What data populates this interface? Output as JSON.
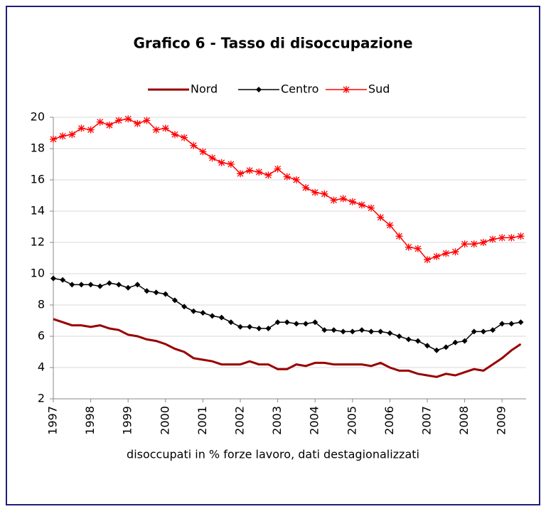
{
  "chart_data": {
    "type": "line",
    "title": "Grafico 6 - Tasso di disoccupazione",
    "x_label": "disoccupati in % forze lavoro, dati destagionalizzati",
    "categories": [
      "1997",
      null,
      null,
      null,
      "1998",
      null,
      null,
      null,
      "1999",
      null,
      null,
      null,
      "2000",
      null,
      null,
      null,
      "2001",
      null,
      null,
      null,
      "2002",
      null,
      null,
      null,
      "2003",
      null,
      null,
      null,
      "2004",
      null,
      null,
      null,
      "2005",
      null,
      null,
      null,
      "2006",
      null,
      null,
      null,
      "2007",
      null,
      null,
      null,
      "2008",
      null,
      null,
      null,
      "2009",
      null,
      null
    ],
    "series": [
      {
        "name": "Nord",
        "color": "#990000",
        "marker": "none",
        "values": [
          7.1,
          6.9,
          6.7,
          6.7,
          6.6,
          6.7,
          6.5,
          6.4,
          6.1,
          6.0,
          5.8,
          5.7,
          5.5,
          5.2,
          5.0,
          4.6,
          4.5,
          4.4,
          4.2,
          4.2,
          4.2,
          4.4,
          4.2,
          4.2,
          3.9,
          3.9,
          4.2,
          4.1,
          4.3,
          4.3,
          4.2,
          4.2,
          4.2,
          4.2,
          4.1,
          4.3,
          4.0,
          3.8,
          3.8,
          3.6,
          3.5,
          3.4,
          3.6,
          3.5,
          3.7,
          3.9,
          3.8,
          4.2,
          4.6,
          5.1,
          5.5
        ]
      },
      {
        "name": "Centro",
        "color": "#000000",
        "marker": "diamond",
        "values": [
          9.7,
          9.6,
          9.3,
          9.3,
          9.3,
          9.2,
          9.4,
          9.3,
          9.1,
          9.3,
          8.9,
          8.8,
          8.7,
          8.3,
          7.9,
          7.6,
          7.5,
          7.3,
          7.2,
          6.9,
          6.6,
          6.6,
          6.5,
          6.5,
          6.9,
          6.9,
          6.8,
          6.8,
          6.9,
          6.4,
          6.4,
          6.3,
          6.3,
          6.4,
          6.3,
          6.3,
          6.2,
          6.0,
          5.8,
          5.7,
          5.4,
          5.1,
          5.3,
          5.6,
          5.7,
          6.3,
          6.3,
          6.4,
          6.8,
          6.8,
          6.9
        ]
      },
      {
        "name": "Sud",
        "color": "#ff0000",
        "marker": "asterisk",
        "values": [
          18.6,
          18.8,
          18.9,
          19.3,
          19.2,
          19.7,
          19.5,
          19.8,
          19.9,
          19.6,
          19.8,
          19.2,
          19.3,
          18.9,
          18.7,
          18.2,
          17.8,
          17.4,
          17.1,
          17.0,
          16.4,
          16.6,
          16.5,
          16.3,
          16.7,
          16.2,
          16.0,
          15.5,
          15.2,
          15.1,
          14.7,
          14.8,
          14.6,
          14.4,
          14.2,
          13.6,
          13.1,
          12.4,
          11.7,
          11.6,
          10.9,
          11.1,
          11.3,
          11.4,
          11.9,
          11.9,
          12.0,
          12.2,
          12.3,
          12.3,
          12.4
        ]
      }
    ],
    "ylim": [
      2,
      20
    ],
    "yticks": [
      2,
      4,
      6,
      8,
      10,
      12,
      14,
      16,
      18,
      20
    ],
    "grid": true,
    "legend": "top"
  }
}
